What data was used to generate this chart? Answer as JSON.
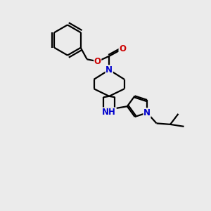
{
  "bg_color": "#ebebeb",
  "line_color": "#000000",
  "bond_width": 1.6,
  "atom_colors": {
    "N": "#0000cc",
    "O": "#cc0000",
    "H": "#000000",
    "C": "#000000"
  },
  "font_size": 8.5,
  "figsize": [
    3.0,
    3.0
  ],
  "dpi": 100,
  "xlim": [
    0,
    10
  ],
  "ylim": [
    0,
    10
  ]
}
